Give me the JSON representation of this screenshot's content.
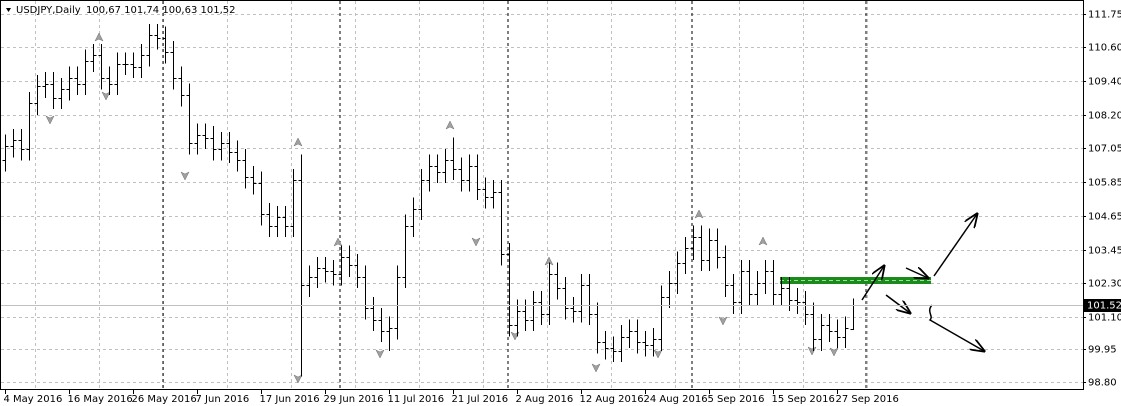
{
  "chart_data": {
    "type": "ohlc",
    "title": "USDJPY,Daily",
    "ohlc_label": "100,67 101,74 100,63 101,52",
    "categories": [
      "4 May 2016",
      null,
      null,
      null,
      null,
      null,
      null,
      null,
      "16 May 2016",
      null,
      null,
      null,
      null,
      null,
      null,
      null,
      "26 May 2016",
      null,
      null,
      null,
      null,
      null,
      null,
      null,
      "7 Jun 2016",
      null,
      null,
      null,
      null,
      null,
      null,
      null,
      "17 Jun 2016",
      null,
      null,
      null,
      null,
      null,
      null,
      null,
      "29 Jun 2016",
      null,
      null,
      null,
      null,
      null,
      null,
      null,
      "11 Jul 2016",
      null,
      null,
      null,
      null,
      null,
      null,
      null,
      "21 Jul 2016",
      null,
      null,
      null,
      null,
      null,
      null,
      null,
      "2 Aug 2016",
      null,
      null,
      null,
      null,
      null,
      null,
      null,
      "12 Aug 2016",
      null,
      null,
      null,
      null,
      null,
      null,
      null,
      "24 Aug 2016",
      null,
      null,
      null,
      null,
      null,
      null,
      null,
      "5 Sep 2016",
      null,
      null,
      null,
      null,
      null,
      null,
      null,
      "15 Sep 2016",
      null,
      null,
      null,
      null,
      null,
      null,
      null,
      "27 Sep 2016",
      null,
      null
    ],
    "open": [
      106.6,
      107.1,
      107.3,
      107.0,
      108.6,
      109.2,
      109.3,
      108.8,
      109.1,
      109.5,
      109.3,
      110.1,
      110.3,
      109.5,
      109.3,
      110.0,
      110.0,
      109.9,
      110.3,
      111.0,
      110.9,
      110.4,
      109.5,
      108.9,
      107.2,
      107.5,
      107.4,
      107.0,
      107.2,
      106.9,
      106.6,
      106.0,
      105.8,
      104.7,
      104.3,
      104.6,
      104.3,
      105.9,
      102.2,
      102.5,
      102.8,
      102.7,
      102.6,
      103.2,
      102.9,
      102.5,
      101.4,
      101.0,
      100.6,
      100.7,
      102.5,
      104.3,
      104.9,
      105.9,
      106.4,
      106.2,
      106.6,
      106.3,
      105.9,
      106.4,
      105.6,
      105.3,
      105.5,
      103.3,
      100.8,
      101.3,
      101.0,
      101.6,
      101.2,
      102.6,
      102.1,
      101.4,
      101.3,
      102.2,
      101.2,
      100.2,
      100.0,
      99.9,
      100.4,
      100.6,
      100.2,
      100.1,
      100.3,
      101.8,
      102.3,
      103.0,
      103.5,
      103.9,
      103.1,
      103.8,
      103.2,
      102.2,
      101.6,
      102.7,
      101.9,
      102.3,
      102.7,
      101.9,
      102.1,
      101.7,
      101.6,
      101.2,
      100.3,
      100.8,
      100.6,
      100.4,
      100.67
    ],
    "high": [
      107.5,
      107.7,
      107.7,
      109.0,
      109.6,
      109.7,
      109.7,
      109.5,
      109.9,
      109.9,
      110.5,
      110.7,
      110.7,
      109.9,
      110.4,
      110.4,
      110.4,
      110.7,
      111.4,
      111.4,
      111.3,
      110.8,
      109.9,
      109.3,
      107.9,
      107.9,
      107.8,
      107.6,
      107.6,
      107.3,
      107.0,
      106.4,
      106.2,
      105.1,
      105.0,
      105.0,
      106.3,
      106.8,
      102.9,
      103.2,
      103.2,
      103.1,
      103.6,
      103.6,
      103.3,
      102.9,
      101.8,
      101.4,
      101.1,
      102.9,
      104.7,
      105.3,
      106.3,
      106.8,
      106.8,
      107.0,
      107.4,
      106.7,
      106.8,
      106.8,
      106.0,
      105.9,
      105.9,
      103.7,
      101.7,
      101.7,
      102.0,
      102.0,
      103.0,
      103.0,
      102.5,
      101.8,
      102.6,
      102.6,
      101.6,
      100.6,
      100.4,
      100.8,
      101.0,
      101.0,
      100.6,
      100.7,
      102.2,
      102.7,
      103.4,
      103.9,
      104.3,
      104.3,
      104.2,
      104.2,
      103.6,
      102.6,
      103.1,
      103.1,
      102.7,
      103.1,
      103.1,
      102.5,
      102.5,
      102.1,
      102.0,
      101.6,
      101.2,
      101.2,
      101.0,
      101.1,
      101.74
    ],
    "low": [
      106.2,
      106.7,
      106.6,
      106.6,
      108.2,
      108.8,
      108.4,
      108.4,
      108.7,
      108.9,
      108.9,
      109.7,
      109.1,
      108.9,
      108.9,
      109.6,
      109.5,
      109.5,
      109.9,
      110.5,
      110.0,
      109.1,
      108.5,
      106.8,
      106.8,
      107.0,
      106.6,
      106.6,
      106.5,
      106.2,
      105.6,
      105.4,
      104.3,
      103.9,
      103.9,
      103.9,
      103.9,
      99.0,
      101.8,
      102.1,
      102.3,
      102.2,
      102.2,
      102.5,
      102.1,
      101.0,
      100.6,
      100.2,
      99.9,
      100.3,
      102.1,
      103.9,
      104.5,
      105.5,
      105.8,
      105.8,
      105.9,
      105.5,
      105.5,
      105.2,
      104.9,
      104.9,
      102.9,
      100.4,
      100.4,
      100.6,
      100.6,
      100.8,
      100.8,
      101.7,
      101.0,
      100.9,
      100.9,
      100.8,
      99.8,
      99.6,
      99.5,
      99.5,
      100.0,
      99.8,
      99.7,
      99.7,
      99.9,
      101.4,
      101.9,
      102.6,
      103.1,
      102.7,
      102.7,
      102.8,
      101.8,
      101.2,
      101.2,
      101.5,
      101.5,
      101.9,
      101.5,
      101.5,
      101.3,
      101.2,
      100.8,
      99.9,
      99.9,
      100.2,
      100.0,
      100.0,
      100.63
    ],
    "close": [
      107.1,
      107.3,
      107.0,
      108.6,
      109.2,
      109.3,
      108.8,
      109.1,
      109.5,
      109.3,
      110.1,
      110.3,
      109.5,
      109.3,
      110.0,
      110.0,
      109.9,
      110.3,
      111.0,
      110.9,
      110.4,
      109.5,
      108.9,
      107.2,
      107.5,
      107.4,
      107.0,
      107.2,
      106.9,
      106.6,
      106.0,
      105.8,
      104.7,
      104.3,
      104.6,
      104.3,
      105.9,
      102.2,
      102.5,
      102.8,
      102.7,
      102.6,
      103.2,
      102.9,
      102.5,
      101.4,
      101.0,
      100.6,
      100.7,
      102.5,
      104.3,
      104.9,
      105.9,
      106.4,
      106.2,
      106.6,
      106.3,
      105.9,
      106.4,
      105.6,
      105.3,
      105.5,
      103.3,
      100.8,
      101.3,
      101.0,
      101.6,
      101.2,
      102.6,
      102.1,
      101.4,
      101.3,
      102.2,
      101.2,
      100.2,
      100.0,
      99.9,
      100.4,
      100.6,
      100.2,
      100.1,
      100.3,
      101.8,
      102.3,
      103.0,
      103.5,
      103.9,
      103.1,
      103.8,
      103.2,
      102.2,
      101.6,
      102.7,
      101.9,
      102.3,
      102.7,
      101.9,
      102.1,
      101.7,
      101.6,
      101.2,
      100.3,
      100.8,
      100.6,
      100.4,
      100.7,
      101.52
    ],
    "last_price": 101.52,
    "ylim": [
      98.52,
      112.24
    ],
    "yticks": [
      111.75,
      {
        "value": 110.6,
        "label": "110.60"
      },
      {
        "value": 109.4,
        "label": "109.40"
      },
      {
        "value": 108.2,
        "label": "108.20"
      },
      107.05,
      105.85,
      104.65,
      103.45,
      {
        "value": 102.3,
        "label": "102.30"
      },
      {
        "value": 101.1,
        "label": "101.10"
      },
      99.95,
      {
        "value": 98.8,
        "label": "98.80"
      }
    ],
    "grid": true,
    "color": "#000000"
  }
}
